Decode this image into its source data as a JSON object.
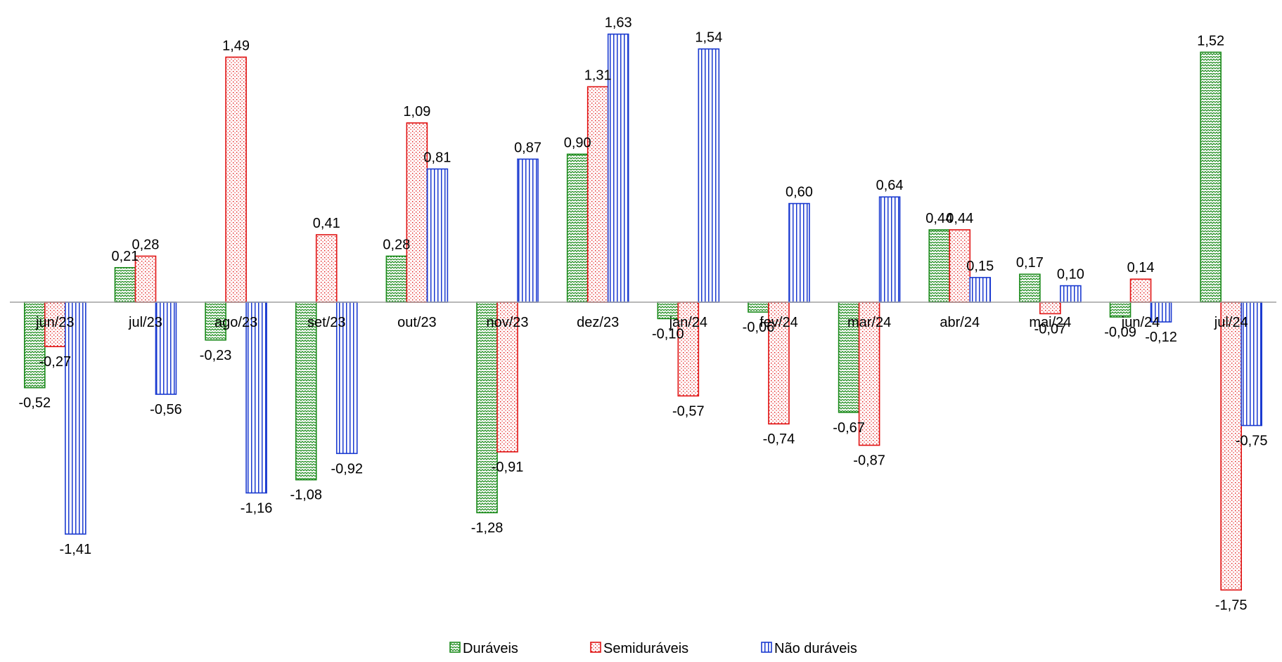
{
  "chart_data": {
    "type": "bar",
    "categories": [
      "jun/23",
      "jul/23",
      "ago/23",
      "set/23",
      "out/23",
      "nov/23",
      "dez/23",
      "jan/24",
      "fev/24",
      "mar/24",
      "abr/24",
      "mai/24",
      "jun/24",
      "jul/24"
    ],
    "series": [
      {
        "name": "Duráveis",
        "color": "#1a8a1a",
        "pattern": "zigzag",
        "values": [
          -0.52,
          0.21,
          -0.23,
          -1.08,
          0.28,
          -1.28,
          0.9,
          -0.1,
          -0.06,
          -0.67,
          0.44,
          0.17,
          -0.09,
          1.52
        ],
        "labels": [
          "-0,52",
          "0,21",
          "-0,23",
          "-1,08",
          "0,28",
          "-1,28",
          "0,90",
          "-0,10",
          "-0,06",
          "-0,67",
          "0,44",
          "0,17",
          "-0,09",
          "1,52"
        ]
      },
      {
        "name": "Semiduráveis",
        "color": "#e01010",
        "pattern": "dots",
        "values": [
          -0.27,
          0.28,
          1.49,
          0.41,
          1.09,
          -0.91,
          1.31,
          -0.57,
          -0.74,
          -0.87,
          0.44,
          -0.07,
          0.14,
          -1.75
        ],
        "labels": [
          "-0,27",
          "0,28",
          "1,49",
          "0,41",
          "1,09",
          "-0,91",
          "1,31",
          "-0,57",
          "-0,74",
          "-0,87",
          "0,44",
          "-0,07",
          "0,14",
          "-1,75"
        ]
      },
      {
        "name": "Não duráveis",
        "color": "#1a3ad0",
        "pattern": "vertical-lines",
        "values": [
          -1.41,
          -0.56,
          -1.16,
          -0.92,
          0.81,
          0.87,
          1.63,
          1.54,
          0.6,
          0.64,
          0.15,
          0.1,
          -0.12,
          -0.75
        ],
        "labels": [
          "-1,41",
          "-0,56",
          "-1,16",
          "-0,92",
          "0,81",
          "0,87",
          "1,63",
          "1,54",
          "0,60",
          "0,64",
          "0,15",
          "0,10",
          "-0,12",
          "-0,75"
        ]
      }
    ],
    "title": "",
    "xlabel": "",
    "ylabel": "",
    "ylim": [
      -1.75,
      1.75
    ],
    "grid": false,
    "legend_position": "bottom"
  }
}
